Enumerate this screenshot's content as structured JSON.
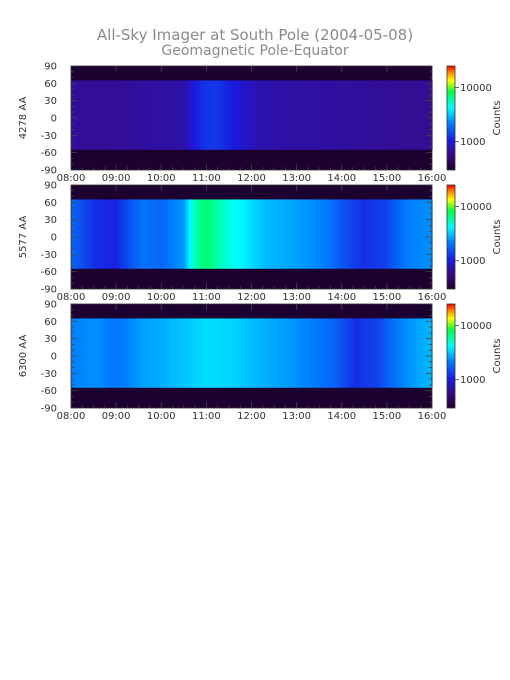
{
  "title": "All-Sky Imager at South Pole (2004-05-08)",
  "subtitle": "Geomagnetic Pole-Equator",
  "colorbar_label": "Counts",
  "chart_data": [
    {
      "type": "heatmap",
      "ylabel": "4278 AA",
      "x_ticks": [
        "08:00",
        "09:00",
        "10:00",
        "11:00",
        "12:00",
        "13:00",
        "14:00",
        "15:00",
        "16:00"
      ],
      "xlim": [
        "08:00",
        "16:00"
      ],
      "y_ticks": [
        "90",
        "60",
        "30",
        "0",
        "-30",
        "-60",
        "-90"
      ],
      "ylim": [
        -90,
        90
      ],
      "colorbar_ticks": [
        "10000",
        "1000"
      ],
      "colorbar_range": [
        300,
        25000
      ],
      "colorbar_scale": "log",
      "band_lat_range": [
        -55,
        65
      ],
      "intensity_profile": {
        "hours": [
          8.0,
          9.0,
          10.0,
          10.5,
          10.9,
          11.2,
          11.8,
          12.2,
          13.0,
          14.0,
          15.0,
          16.0
        ],
        "counts": [
          650,
          650,
          700,
          720,
          1200,
          1300,
          900,
          750,
          700,
          680,
          650,
          620
        ]
      }
    },
    {
      "type": "heatmap",
      "ylabel": "5577 AA",
      "x_ticks": [
        "08:00",
        "09:00",
        "10:00",
        "11:00",
        "12:00",
        "13:00",
        "14:00",
        "15:00",
        "16:00"
      ],
      "xlim": [
        "08:00",
        "16:00"
      ],
      "y_ticks": [
        "90",
        "60",
        "30",
        "0",
        "-30",
        "-60",
        "-90"
      ],
      "ylim": [
        -90,
        90
      ],
      "colorbar_ticks": [
        "10000",
        "1000"
      ],
      "colorbar_range": [
        300,
        25000
      ],
      "colorbar_scale": "log",
      "band_lat_range": [
        -55,
        65
      ],
      "intensity_profile": {
        "hours": [
          8.0,
          8.5,
          9.0,
          9.6,
          10.0,
          10.5,
          10.8,
          11.0,
          11.4,
          11.8,
          12.3,
          13.0,
          13.6,
          14.0,
          14.5,
          15.0,
          15.5,
          16.0
        ],
        "counts": [
          1800,
          1200,
          1100,
          2000,
          1800,
          2500,
          6000,
          7000,
          5000,
          4000,
          3000,
          2600,
          2200,
          1600,
          1200,
          1400,
          2200,
          2400
        ]
      }
    },
    {
      "type": "heatmap",
      "ylabel": "6300 AA",
      "x_ticks": [
        "08:00",
        "09:00",
        "10:00",
        "11:00",
        "12:00",
        "13:00",
        "14:00",
        "15:00",
        "16:00"
      ],
      "xlim": [
        "08:00",
        "16:00"
      ],
      "y_ticks": [
        "90",
        "60",
        "30",
        "0",
        "-30",
        "-60",
        "-90"
      ],
      "ylim": [
        -90,
        90
      ],
      "colorbar_ticks": [
        "10000",
        "1000"
      ],
      "colorbar_range": [
        300,
        25000
      ],
      "colorbar_scale": "log",
      "band_lat_range": [
        -55,
        65
      ],
      "intensity_profile": {
        "hours": [
          8.0,
          8.6,
          9.0,
          9.6,
          10.0,
          10.6,
          11.0,
          11.6,
          12.0,
          13.0,
          13.8,
          14.3,
          14.8,
          15.3,
          16.0
        ],
        "counts": [
          2200,
          2400,
          2000,
          2600,
          2800,
          3200,
          3600,
          3400,
          3000,
          2400,
          1800,
          1200,
          1400,
          2200,
          3000
        ]
      }
    }
  ]
}
